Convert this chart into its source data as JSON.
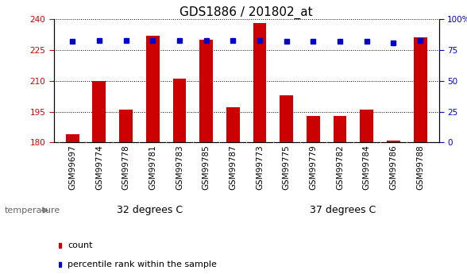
{
  "title": "GDS1886 / 201802_at",
  "samples": [
    "GSM99697",
    "GSM99774",
    "GSM99778",
    "GSM99781",
    "GSM99783",
    "GSM99785",
    "GSM99787",
    "GSM99773",
    "GSM99775",
    "GSM99779",
    "GSM99782",
    "GSM99784",
    "GSM99786",
    "GSM99788"
  ],
  "counts": [
    184,
    210,
    196,
    232,
    211,
    230,
    197,
    238,
    203,
    193,
    193,
    196,
    181,
    231
  ],
  "percentiles": [
    82,
    83,
    83,
    83,
    83,
    83,
    83,
    83,
    82,
    82,
    82,
    82,
    81,
    83
  ],
  "group1_label": "32 degrees C",
  "group2_label": "37 degrees C",
  "group1_count": 7,
  "group2_count": 7,
  "ylim_left": [
    180,
    240
  ],
  "ylim_right": [
    0,
    100
  ],
  "yticks_left": [
    180,
    195,
    210,
    225,
    240
  ],
  "yticks_right": [
    0,
    25,
    50,
    75,
    100
  ],
  "bar_color": "#cc0000",
  "dot_color": "#0000cc",
  "group1_color": "#bbffbb",
  "group2_color": "#44cc44",
  "strip_color": "#cccccc",
  "temperature_label": "temperature",
  "legend_count_label": "count",
  "legend_pct_label": "percentile rank within the sample",
  "title_fontsize": 11,
  "tick_fontsize": 7.5,
  "label_fontsize": 8,
  "group_label_fontsize": 9
}
